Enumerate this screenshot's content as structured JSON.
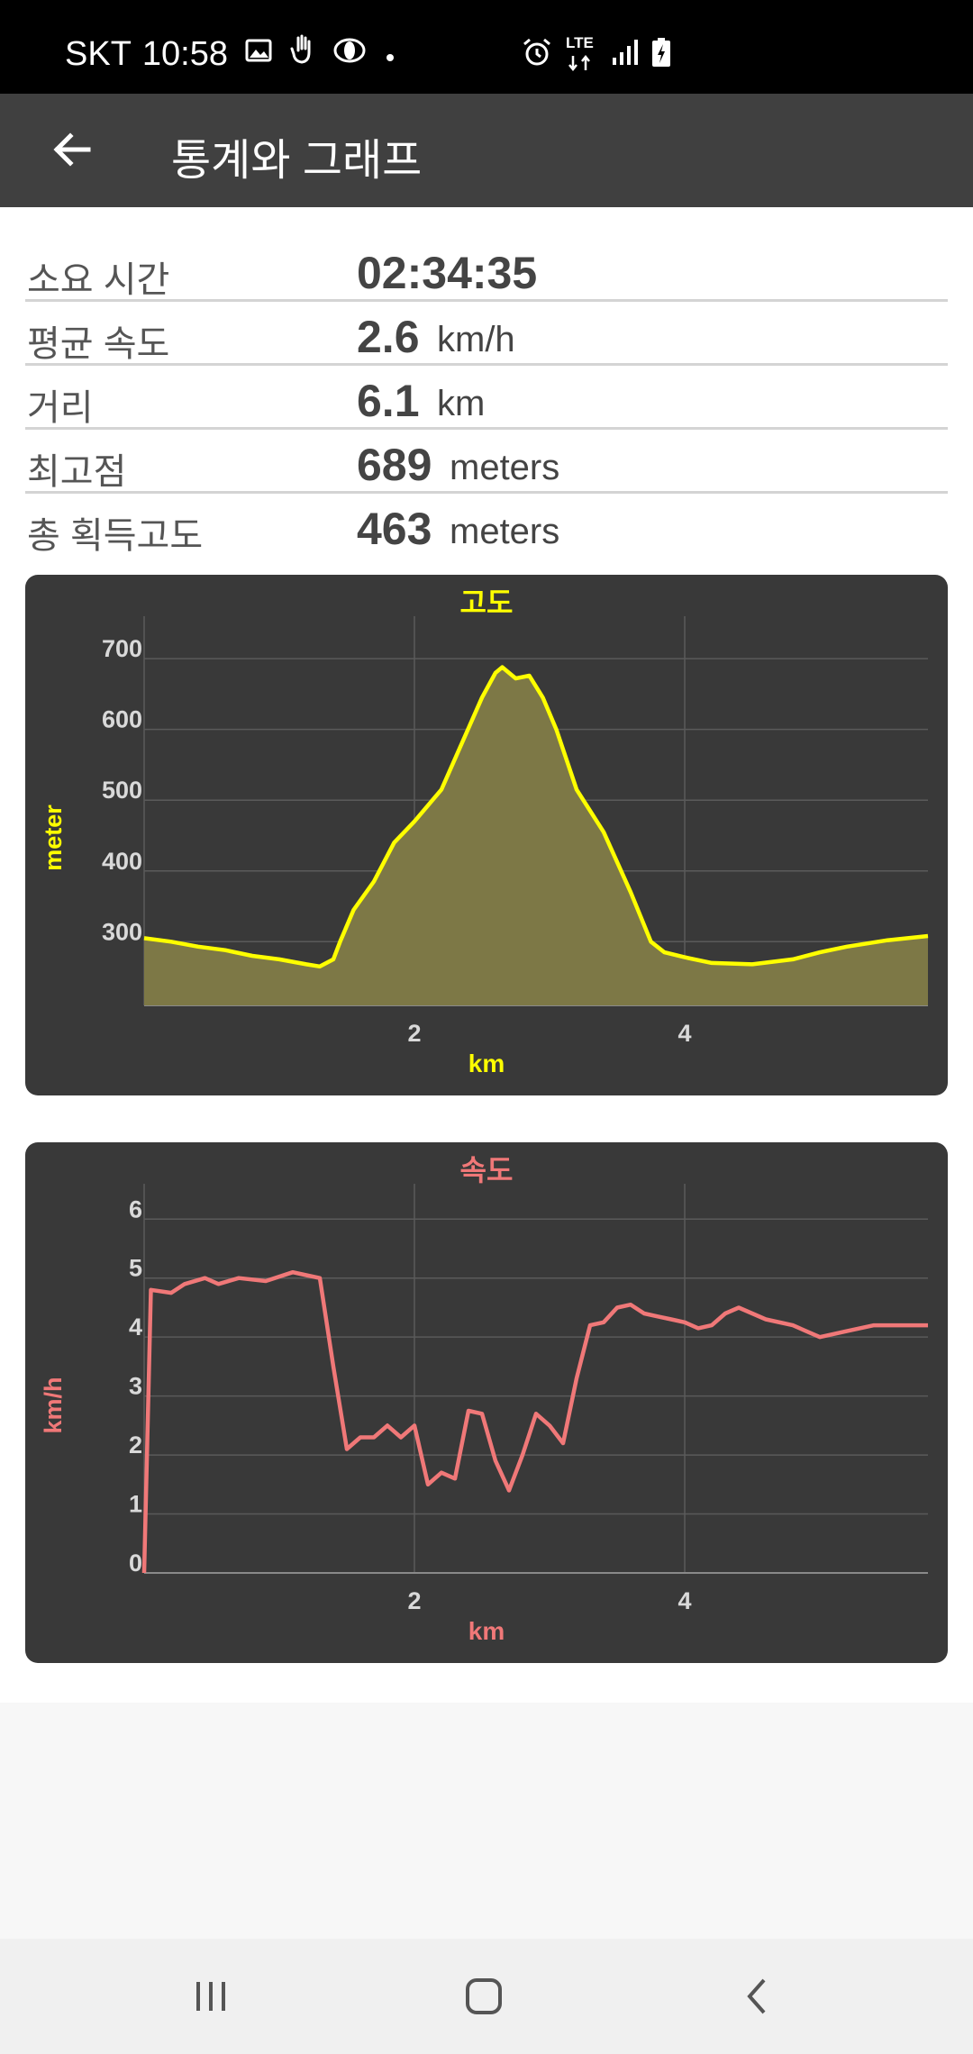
{
  "status_bar": {
    "carrier": "SKT",
    "time": "10:58",
    "network": "LTE",
    "icons": [
      "image-icon",
      "hand-icon",
      "circle-icon",
      "dot-icon",
      "alarm-icon",
      "lte-icon",
      "signal-icon",
      "battery-charging-icon"
    ]
  },
  "app_bar": {
    "title": "통계와 그래프",
    "back_icon": "arrow-left-icon"
  },
  "stats": [
    {
      "label": "소요 시간",
      "value": "02:34:35",
      "unit": ""
    },
    {
      "label": "평균 속도",
      "value": "2.6",
      "unit": "km/h"
    },
    {
      "label": "거리",
      "value": "6.1",
      "unit": "km"
    },
    {
      "label": "최고점",
      "value": "689",
      "unit": "meters"
    },
    {
      "label": "총 획득고도",
      "value": "463",
      "unit": "meters"
    }
  ],
  "colors": {
    "card_bg": "#393939",
    "altitude": "#ffff00",
    "altitude_fill": "#7d7846",
    "speed": "#f07878",
    "grid": "#5a5a5a",
    "tick_text": "#d9d9d9"
  },
  "chart_data": [
    {
      "type": "area",
      "title": "고도",
      "xlabel": "km",
      "ylabel": "meter",
      "xlim": [
        0,
        5.8
      ],
      "ylim": [
        210,
        760
      ],
      "xticks": [
        2,
        4
      ],
      "yticks": [
        300,
        400,
        500,
        600,
        700
      ],
      "grid": true,
      "x": [
        0,
        0.2,
        0.4,
        0.6,
        0.8,
        1.0,
        1.2,
        1.3,
        1.4,
        1.45,
        1.55,
        1.7,
        1.85,
        2.0,
        2.2,
        2.35,
        2.5,
        2.6,
        2.65,
        2.75,
        2.85,
        2.95,
        3.05,
        3.2,
        3.4,
        3.6,
        3.75,
        3.85,
        4.0,
        4.2,
        4.5,
        4.8,
        5.0,
        5.2,
        5.5,
        5.8
      ],
      "y": [
        305,
        300,
        293,
        288,
        280,
        275,
        268,
        265,
        275,
        300,
        345,
        385,
        440,
        470,
        515,
        580,
        645,
        680,
        688,
        672,
        676,
        645,
        600,
        515,
        455,
        370,
        300,
        285,
        278,
        270,
        268,
        275,
        285,
        293,
        302,
        308
      ]
    },
    {
      "type": "line",
      "title": "속도",
      "xlabel": "km",
      "ylabel": "km/h",
      "xlim": [
        0,
        5.8
      ],
      "ylim": [
        0,
        6.6
      ],
      "xticks": [
        2,
        4
      ],
      "yticks": [
        0,
        1,
        2,
        3,
        4,
        5,
        6
      ],
      "grid": true,
      "x": [
        0,
        0.05,
        0.2,
        0.3,
        0.45,
        0.55,
        0.7,
        0.9,
        1.1,
        1.2,
        1.3,
        1.4,
        1.5,
        1.6,
        1.7,
        1.8,
        1.9,
        2.0,
        2.1,
        2.2,
        2.3,
        2.4,
        2.5,
        2.6,
        2.7,
        2.8,
        2.9,
        3.0,
        3.1,
        3.2,
        3.3,
        3.4,
        3.5,
        3.6,
        3.7,
        3.8,
        3.9,
        4.0,
        4.1,
        4.2,
        4.3,
        4.4,
        4.5,
        4.6,
        4.8,
        5.0,
        5.2,
        5.4,
        5.5,
        5.6,
        5.8
      ],
      "y": [
        0,
        4.8,
        4.75,
        4.9,
        5.0,
        4.9,
        5.0,
        4.95,
        5.1,
        5.05,
        5.0,
        3.5,
        2.1,
        2.3,
        2.3,
        2.5,
        2.3,
        2.5,
        1.5,
        1.7,
        1.6,
        2.75,
        2.7,
        1.9,
        1.4,
        2.0,
        2.7,
        2.5,
        2.2,
        3.3,
        4.2,
        4.25,
        4.5,
        4.55,
        4.4,
        4.35,
        4.3,
        4.25,
        4.15,
        4.2,
        4.4,
        4.5,
        4.4,
        4.3,
        4.2,
        4.0,
        4.1,
        4.2,
        4.2,
        4.2,
        4.2
      ]
    }
  ]
}
